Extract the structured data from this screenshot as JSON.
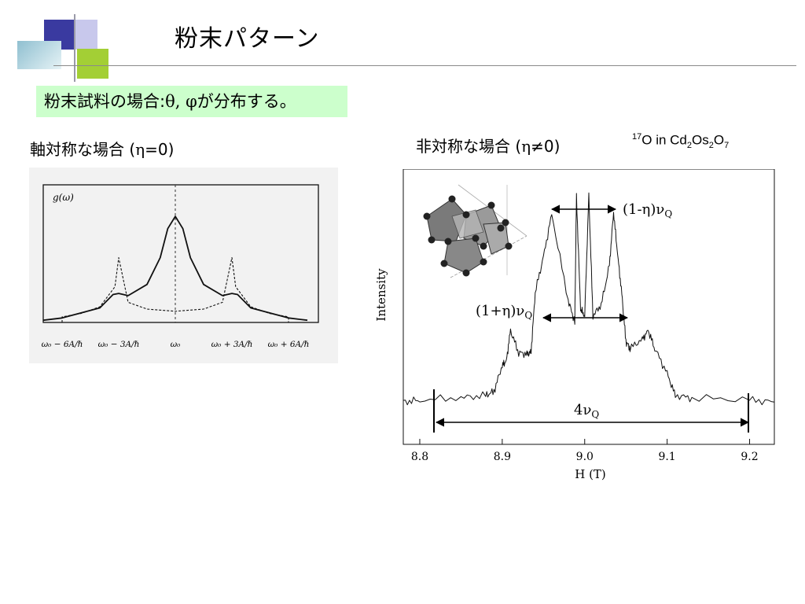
{
  "slide": {
    "title": "粉末パターン",
    "callout_prefix": "粉末試料の場合",
    "callout_colon": ":",
    "callout_theta": "θ, φ",
    "callout_suffix": "が分布する。"
  },
  "left_figure": {
    "caption_prefix": "軸対称な場合 (",
    "caption_eta": "η",
    "caption_suffix": "=0)",
    "ylabel": "g(ω)",
    "tick_labels": [
      "ω₀ − 6A/ℏ",
      "ω₀ − 3A/ℏ",
      "ω₀",
      "ω₀ + 3A/ℏ",
      "ω₀ + 6A/ℏ"
    ]
  },
  "right_figure": {
    "caption_prefix": "非対称な場合 (",
    "caption_eta": "η",
    "caption_suffix": "≠0)",
    "compound_iso": "17",
    "compound_o": "O in Cd",
    "compound_sub1": "2",
    "compound_os": "Os",
    "compound_sub2": "2",
    "compound_o2": "O",
    "compound_sub3": "7",
    "ylabel": "Intensity",
    "xlabel": "H (T)",
    "x_ticks": [
      "8.8",
      "8.9",
      "9.0",
      "9.1",
      "9.2"
    ],
    "annotation_minus": "(1-η)ν",
    "annotation_plus": "(1+η)ν",
    "annotation_4": "4ν",
    "annotation_sub": "Q"
  },
  "chart_data": [
    {
      "type": "line",
      "x_axis": "ω",
      "series": [
        {
          "style": "solid",
          "x": [
            -7,
            -6,
            -4,
            -3.3,
            -3,
            -2.5,
            -1.5,
            -0.8,
            -0.4,
            0,
            0.4,
            0.8,
            1.5,
            2.5,
            3,
            3.3,
            4,
            6,
            7
          ],
          "y": [
            0.02,
            0.04,
            0.13,
            0.25,
            0.26,
            0.24,
            0.34,
            0.58,
            0.84,
            0.95,
            0.84,
            0.58,
            0.34,
            0.24,
            0.26,
            0.25,
            0.13,
            0.04,
            0.02
          ]
        },
        {
          "style": "dashed",
          "x": [
            -6,
            -6,
            -5,
            -4,
            -3.2,
            -3,
            -2.5,
            -1.5,
            0,
            1.5,
            2.5,
            3,
            3.2,
            4,
            5,
            6,
            6
          ],
          "y": [
            0,
            0.05,
            0.08,
            0.14,
            0.32,
            0.58,
            0.18,
            0.12,
            0.1,
            0.12,
            0.18,
            0.58,
            0.32,
            0.14,
            0.08,
            0.05,
            0
          ]
        }
      ]
    },
    {
      "type": "line",
      "xlabel": "H (T)",
      "ylabel": "Intensity",
      "xlim": [
        8.78,
        9.23
      ],
      "series": [
        {
          "x": [
            8.78,
            8.8,
            8.85,
            8.88,
            8.89,
            8.9,
            8.905,
            8.91,
            8.92,
            8.93,
            8.935,
            8.94,
            8.95,
            8.96,
            8.98,
            8.988,
            8.99,
            8.995,
            9.0,
            9.005,
            9.01,
            9.02,
            9.03,
            9.035,
            9.04,
            9.045,
            9.05,
            9.055,
            9.07,
            9.077,
            9.085,
            9.1,
            9.11,
            9.13,
            9.2,
            9.23
          ],
          "y": [
            0.05,
            0.06,
            0.07,
            0.08,
            0.1,
            0.22,
            0.24,
            0.38,
            0.28,
            0.27,
            0.28,
            0.56,
            0.72,
            0.92,
            0.52,
            0.42,
            1.0,
            0.48,
            0.45,
            1.0,
            0.45,
            0.5,
            0.68,
            0.93,
            0.73,
            0.55,
            0.33,
            0.3,
            0.34,
            0.38,
            0.3,
            0.18,
            0.08,
            0.07,
            0.06,
            0.05
          ]
        }
      ]
    }
  ]
}
